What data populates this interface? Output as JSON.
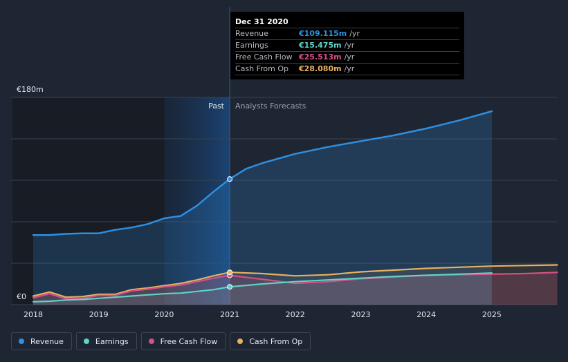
{
  "chart_data": {
    "type": "line",
    "title": "",
    "y_axis": {
      "min": 0,
      "max": 180,
      "unit": "€",
      "top_label": "€180m",
      "bottom_label": "€0"
    },
    "x_axis": {
      "min": 2018,
      "max": 2026,
      "ticks": [
        "2018",
        "2019",
        "2020",
        "2021",
        "2022",
        "2023",
        "2024",
        "2025"
      ]
    },
    "divider_year": 2021,
    "past_label": "Past",
    "forecast_label": "Analysts Forecasts",
    "series": [
      {
        "name": "Revenue",
        "color": "#2f8fe0",
        "points": [
          [
            2018,
            60.4
          ],
          [
            2018.25,
            60.4
          ],
          [
            2018.5,
            61.5
          ],
          [
            2018.75,
            62.0
          ],
          [
            2019,
            62.0
          ],
          [
            2019.25,
            65.0
          ],
          [
            2019.5,
            67.0
          ],
          [
            2019.75,
            70.0
          ],
          [
            2020,
            75.0
          ],
          [
            2020.25,
            77.0
          ],
          [
            2020.5,
            86.0
          ],
          [
            2020.75,
            98.0
          ],
          [
            2021,
            109.115
          ],
          [
            2021.25,
            118.0
          ],
          [
            2021.5,
            123.0
          ],
          [
            2021.75,
            127.0
          ],
          [
            2022,
            131.0
          ],
          [
            2022.5,
            137.0
          ],
          [
            2023,
            142.0
          ],
          [
            2023.5,
            147.0
          ],
          [
            2024,
            153.0
          ],
          [
            2024.5,
            160.0
          ],
          [
            2025,
            168.0
          ]
        ]
      },
      {
        "name": "Earnings",
        "color": "#5fd3c6",
        "points": [
          [
            2018,
            2.5
          ],
          [
            2018.25,
            3.0
          ],
          [
            2018.5,
            4.0
          ],
          [
            2018.75,
            4.5
          ],
          [
            2019,
            5.5
          ],
          [
            2019.25,
            6.5
          ],
          [
            2019.5,
            7.5
          ],
          [
            2019.75,
            8.5
          ],
          [
            2020,
            9.5
          ],
          [
            2020.25,
            10.0
          ],
          [
            2020.5,
            11.5
          ],
          [
            2020.75,
            13.0
          ],
          [
            2021,
            15.475
          ],
          [
            2021.5,
            18.0
          ],
          [
            2022,
            20.0
          ],
          [
            2022.5,
            21.5
          ],
          [
            2023,
            23.0
          ],
          [
            2023.5,
            24.5
          ],
          [
            2024,
            25.5
          ],
          [
            2024.5,
            26.5
          ],
          [
            2025,
            27.5
          ]
        ]
      },
      {
        "name": "Free Cash Flow",
        "color": "#d64f8a",
        "points": [
          [
            2018,
            6.0
          ],
          [
            2018.25,
            9.5
          ],
          [
            2018.5,
            5.0
          ],
          [
            2018.75,
            5.5
          ],
          [
            2019,
            8.0
          ],
          [
            2019.25,
            8.0
          ],
          [
            2019.5,
            12.0
          ],
          [
            2019.75,
            13.5
          ],
          [
            2020,
            15.5
          ],
          [
            2020.25,
            17.0
          ],
          [
            2020.5,
            20.0
          ],
          [
            2020.75,
            23.0
          ],
          [
            2021,
            25.513
          ],
          [
            2021.5,
            22.0
          ],
          [
            2022,
            18.5
          ],
          [
            2022.5,
            20.0
          ],
          [
            2023,
            22.5
          ],
          [
            2023.5,
            24.0
          ],
          [
            2024,
            25.5
          ],
          [
            2024.5,
            26.0
          ],
          [
            2025,
            26.5
          ],
          [
            2025.5,
            27.0
          ],
          [
            2026,
            28.0
          ]
        ]
      },
      {
        "name": "Cash From Op",
        "color": "#e7b15f",
        "points": [
          [
            2018,
            7.5
          ],
          [
            2018.25,
            11.0
          ],
          [
            2018.5,
            6.5
          ],
          [
            2018.75,
            7.0
          ],
          [
            2019,
            9.0
          ],
          [
            2019.25,
            9.0
          ],
          [
            2019.5,
            13.0
          ],
          [
            2019.75,
            14.5
          ],
          [
            2020,
            16.5
          ],
          [
            2020.25,
            18.5
          ],
          [
            2020.5,
            21.5
          ],
          [
            2020.75,
            25.0
          ],
          [
            2021,
            28.08
          ],
          [
            2021.5,
            27.0
          ],
          [
            2022,
            25.0
          ],
          [
            2022.5,
            26.0
          ],
          [
            2023,
            28.5
          ],
          [
            2023.5,
            30.0
          ],
          [
            2024,
            31.5
          ],
          [
            2024.5,
            32.5
          ],
          [
            2025,
            33.5
          ],
          [
            2025.5,
            34.0
          ],
          [
            2026,
            34.5
          ]
        ]
      }
    ],
    "tooltip": {
      "date": "Dec 31 2020",
      "rows": [
        {
          "name": "Revenue",
          "value": "€109.115m",
          "unit": "/yr",
          "color": "#2f8fe0"
        },
        {
          "name": "Earnings",
          "value": "€15.475m",
          "unit": "/yr",
          "color": "#5fd3c6"
        },
        {
          "name": "Free Cash Flow",
          "value": "€25.513m",
          "unit": "/yr",
          "color": "#d64f8a"
        },
        {
          "name": "Cash From Op",
          "value": "€28.080m",
          "unit": "/yr",
          "color": "#e7b15f"
        }
      ]
    },
    "legend": [
      {
        "name": "Revenue",
        "color": "#2f8fe0"
      },
      {
        "name": "Earnings",
        "color": "#5fd3c6"
      },
      {
        "name": "Free Cash Flow",
        "color": "#d64f8a"
      },
      {
        "name": "Cash From Op",
        "color": "#e7b15f"
      }
    ]
  }
}
